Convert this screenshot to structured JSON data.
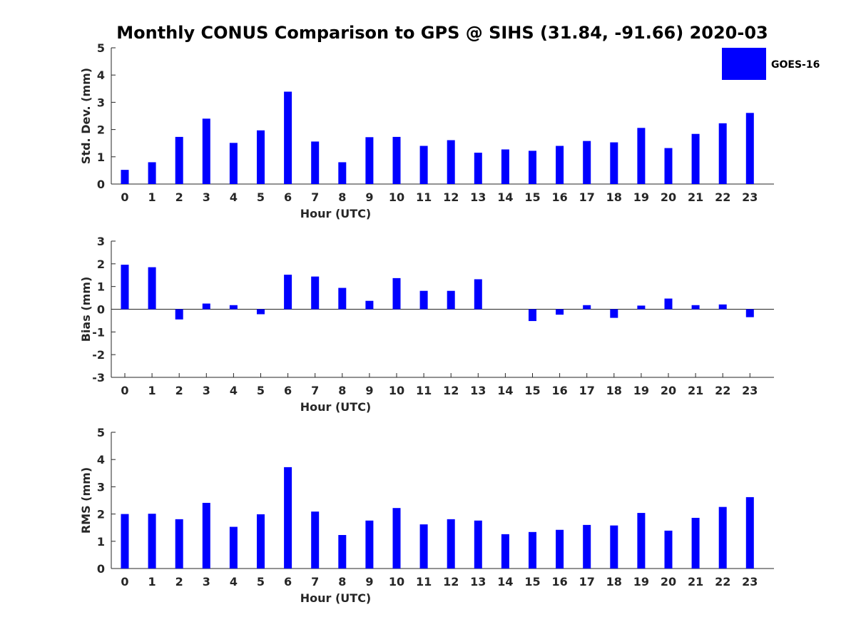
{
  "title": "Monthly CONUS Comparison to GPS @ SIHS (31.84, -91.66) 2020-03",
  "legend": {
    "label": "GOES-16",
    "color": "#0000ff",
    "placement": "top-right"
  },
  "chart_data": [
    {
      "type": "bar",
      "title": "Monthly CONUS Comparison to GPS @ SIHS (31.84, -91.66) 2020-03",
      "xlabel": "Hour (UTC)",
      "ylabel": "Std. Dev. (mm)",
      "ylim": [
        0,
        5
      ],
      "yticks": [
        "0",
        "1",
        "2",
        "3",
        "4",
        "5"
      ],
      "categories": [
        "0",
        "1",
        "2",
        "3",
        "4",
        "5",
        "6",
        "7",
        "8",
        "9",
        "10",
        "11",
        "12",
        "13",
        "14",
        "15",
        "16",
        "17",
        "18",
        "19",
        "20",
        "21",
        "22",
        "23"
      ],
      "series": [
        {
          "name": "GOES-16",
          "color": "#0000ff",
          "values": [
            0.52,
            0.8,
            1.73,
            2.4,
            1.51,
            1.97,
            3.39,
            1.56,
            0.8,
            1.72,
            1.73,
            1.4,
            1.61,
            1.15,
            1.27,
            1.22,
            1.4,
            1.58,
            1.53,
            2.06,
            1.32,
            1.84,
            2.23,
            2.61
          ]
        }
      ]
    },
    {
      "type": "bar",
      "xlabel": "Hour (UTC)",
      "ylabel": "Bias (mm)",
      "ylim": [
        -3,
        3
      ],
      "yticks": [
        "-3",
        "-2",
        "-1",
        "0",
        "1",
        "2",
        "3"
      ],
      "zero_line": true,
      "categories": [
        "0",
        "1",
        "2",
        "3",
        "4",
        "5",
        "6",
        "7",
        "8",
        "9",
        "10",
        "11",
        "12",
        "13",
        "14",
        "15",
        "16",
        "17",
        "18",
        "19",
        "20",
        "21",
        "22",
        "23"
      ],
      "series": [
        {
          "name": "GOES-16",
          "color": "#0000ff",
          "values": [
            1.96,
            1.85,
            -0.45,
            0.25,
            0.18,
            -0.22,
            1.52,
            1.44,
            0.94,
            0.37,
            1.37,
            0.81,
            0.81,
            1.32,
            0.0,
            -0.52,
            -0.24,
            0.18,
            -0.38,
            0.16,
            0.47,
            0.18,
            0.21,
            -0.35
          ]
        }
      ]
    },
    {
      "type": "bar",
      "xlabel": "Hour (UTC)",
      "ylabel": "RMS (mm)",
      "ylim": [
        0,
        5
      ],
      "yticks": [
        "0",
        "1",
        "2",
        "3",
        "4",
        "5"
      ],
      "categories": [
        "0",
        "1",
        "2",
        "3",
        "4",
        "5",
        "6",
        "7",
        "8",
        "9",
        "10",
        "11",
        "12",
        "13",
        "14",
        "15",
        "16",
        "17",
        "18",
        "19",
        "20",
        "21",
        "22",
        "23"
      ],
      "series": [
        {
          "name": "GOES-16",
          "color": "#0000ff",
          "values": [
            2.0,
            2.01,
            1.81,
            2.41,
            1.53,
            1.99,
            3.72,
            2.09,
            1.23,
            1.76,
            2.22,
            1.62,
            1.81,
            1.76,
            1.26,
            1.34,
            1.42,
            1.6,
            1.58,
            2.04,
            1.39,
            1.86,
            2.26,
            2.62
          ]
        }
      ]
    }
  ]
}
